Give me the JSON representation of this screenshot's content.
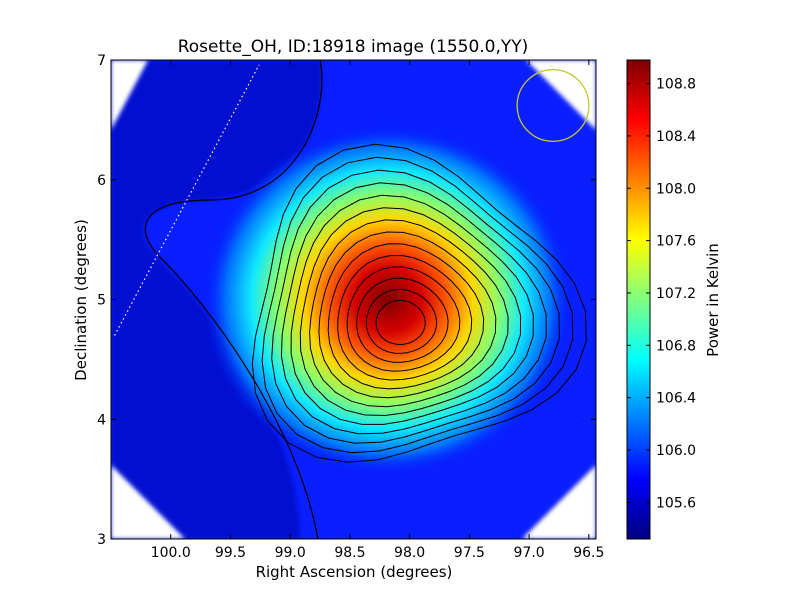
{
  "chart_data": {
    "type": "heatmap",
    "title": "Rosette_OH, ID:18918 image (1550.0,YY)",
    "xlabel": "Right Ascension (degrees)",
    "ylabel": "Declination (degrees)",
    "xlim": [
      100.5,
      96.44
    ],
    "ylim": [
      3,
      7
    ],
    "x_ticks": [
      100.0,
      99.5,
      99.0,
      98.5,
      98.0,
      97.5,
      97.0,
      96.5
    ],
    "x_tick_labels": [
      "100.0",
      "99.5",
      "99.0",
      "98.5",
      "98.0",
      "97.5",
      "97.0",
      "96.5"
    ],
    "y_ticks": [
      3,
      4,
      5,
      6,
      7
    ],
    "y_tick_labels": [
      "3",
      "4",
      "5",
      "6",
      "7"
    ],
    "colorbar": {
      "label": "Power in Kelvin",
      "range": [
        105.32,
        108.98
      ],
      "ticks": [
        105.6,
        106.0,
        106.4,
        106.8,
        107.2,
        107.6,
        108.0,
        108.4,
        108.8
      ],
      "tick_labels": [
        "105.6",
        "106.0",
        "106.4",
        "106.8",
        "107.2",
        "107.6",
        "108.0",
        "108.4",
        "108.8"
      ],
      "colormap": "jet"
    },
    "peak": {
      "ra": 98.08,
      "dec": 4.8,
      "value": 108.95
    },
    "contour_levels": [
      105.55,
      105.75,
      106.0,
      106.25,
      106.5,
      106.75,
      107.0,
      107.25,
      107.5,
      107.75,
      108.0,
      108.25,
      108.5,
      108.75
    ],
    "beam": {
      "ra": 96.8,
      "dec": 6.62,
      "radius_deg": 0.3,
      "color": "#c8c832"
    },
    "scan_line": [
      [
        100.47,
        4.7
      ],
      [
        99.26,
        6.96
      ]
    ],
    "grid": false,
    "legend": "none"
  }
}
